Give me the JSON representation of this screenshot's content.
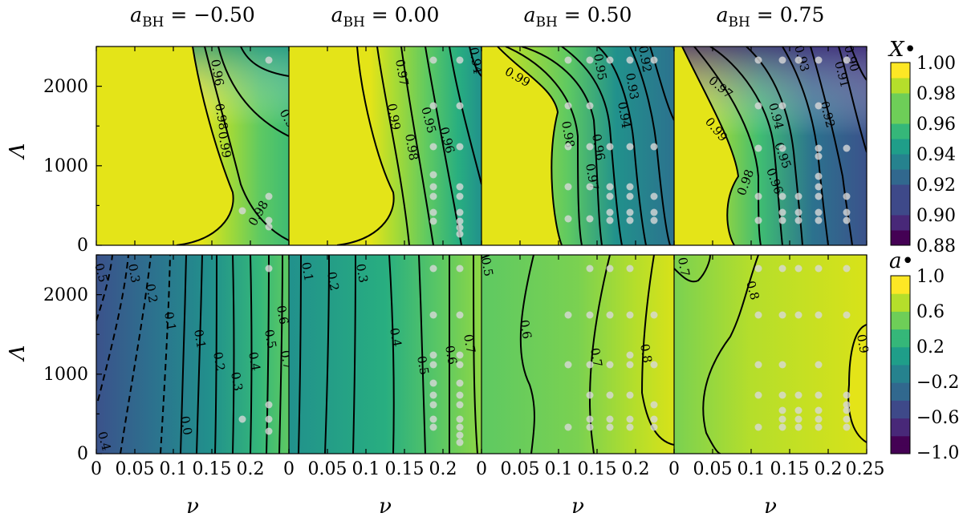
{
  "colors": {
    "viridis": [
      "#440154",
      "#482878",
      "#3e4989",
      "#31688e",
      "#26828e",
      "#1f9e89",
      "#35b779",
      "#6ece58",
      "#b5de2b",
      "#fde725"
    ],
    "contour_line": "#000000",
    "sample_point": "#d8d8d8"
  },
  "chart_data": [
    {
      "type": "heatmap",
      "panel": "top-row",
      "quantity": "X_bullet",
      "colorbar_label": "X•",
      "colorbar_ticks": [
        "1.00",
        "0.98",
        "0.96",
        "0.94",
        "0.92",
        "0.90",
        "0.88"
      ],
      "clim": [
        0.88,
        1.0
      ],
      "ylabel": "Λ",
      "ylim": [
        0,
        2500
      ],
      "yticks": [
        "0",
        "1000",
        "2000"
      ],
      "xlim": [
        0,
        0.25
      ],
      "columns": [
        {
          "title": "aBH = −0.50",
          "contour_levels": [
            "0.96",
            "0.98",
            "0.99",
            "0.97",
            "0.98"
          ]
        },
        {
          "title": "aBH = 0.00",
          "contour_levels": [
            "0.97",
            "0.95",
            "0.96",
            "0.98",
            "0.99",
            "0.94"
          ]
        },
        {
          "title": "aBH = 0.50",
          "contour_levels": [
            "0.99",
            "0.98",
            "0.96",
            "0.97",
            "0.95",
            "0.94",
            "0.93",
            "0.92"
          ]
        },
        {
          "title": "aBH = 0.75",
          "contour_levels": [
            "0.97",
            "0.99",
            "0.98",
            "0.96",
            "0.95",
            "0.94",
            "0.93",
            "0.92",
            "0.91",
            "0.90"
          ]
        }
      ]
    },
    {
      "type": "heatmap",
      "panel": "bottom-row",
      "quantity": "a_bullet",
      "colorbar_label": "a•",
      "colorbar_ticks": [
        "1.0",
        "0.6",
        "0.2",
        "−0.2",
        "−0.6",
        "−1.0"
      ],
      "clim": [
        -1.0,
        1.0
      ],
      "ylabel": "Λ",
      "ylim": [
        0,
        2500
      ],
      "yticks": [
        "0",
        "1000",
        "2000"
      ],
      "xlabel": "ν",
      "xlim": [
        0,
        0.25
      ],
      "xticks": [
        "0",
        "0.05",
        "0.1",
        "0.15",
        "0.2"
      ],
      "xticks_last": [
        "0",
        "0.05",
        "0.1",
        "0.15",
        "0.2",
        "0.25"
      ],
      "columns": [
        {
          "contour_levels": [
            "0.3",
            "0.2",
            "0.1",
            "0.0",
            "0.1",
            "0.2",
            "0.3",
            "0.4",
            "0.5",
            "0.6",
            "0.7",
            "0.4",
            "0.5"
          ]
        },
        {
          "contour_levels": [
            "0.1",
            "0.2",
            "0.3",
            "0.4",
            "0.5",
            "0.6",
            "0.7"
          ]
        },
        {
          "contour_levels": [
            "0.5",
            "0.6",
            "0.7",
            "0.8"
          ]
        },
        {
          "contour_levels": [
            "0.7",
            "0.8",
            "0.9"
          ]
        }
      ]
    }
  ]
}
